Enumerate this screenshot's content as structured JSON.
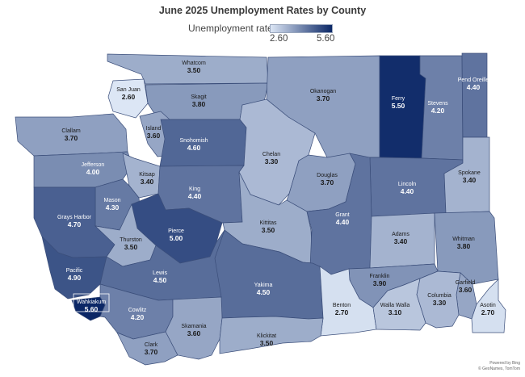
{
  "title": "June 2025 Unemployment Rates by County",
  "legend": {
    "label": "Unemployment rate",
    "min": "2.60",
    "max": "5.60",
    "min_value": 2.6,
    "max_value": 5.6,
    "color_low": "#dce6f5",
    "color_high": "#0b2766"
  },
  "attribution": {
    "line1": "Powered by Bing",
    "line2": "© GeoNames, TomTom"
  },
  "counties": [
    {
      "name": "Whatcom",
      "value": "3.50"
    },
    {
      "name": "San Juan",
      "value": "2.60"
    },
    {
      "name": "Skagit",
      "value": "3.80"
    },
    {
      "name": "Okanogan",
      "value": "3.70"
    },
    {
      "name": "Ferry",
      "value": "5.50"
    },
    {
      "name": "Stevens",
      "value": "4.20"
    },
    {
      "name": "Pend Oreille",
      "value": "4.40"
    },
    {
      "name": "Clallam",
      "value": "3.70"
    },
    {
      "name": "Island",
      "value": "3.60"
    },
    {
      "name": "Snohomish",
      "value": "4.60"
    },
    {
      "name": "Chelan",
      "value": "3.30"
    },
    {
      "name": "Jefferson",
      "value": "4.00"
    },
    {
      "name": "Kitsap",
      "value": "3.40"
    },
    {
      "name": "King",
      "value": "4.40"
    },
    {
      "name": "Douglas",
      "value": "3.70"
    },
    {
      "name": "Lincoln",
      "value": "4.40"
    },
    {
      "name": "Spokane",
      "value": "3.40"
    },
    {
      "name": "Mason",
      "value": "4.30"
    },
    {
      "name": "Grays Harbor",
      "value": "4.70"
    },
    {
      "name": "Pierce",
      "value": "5.00"
    },
    {
      "name": "Kittitas",
      "value": "3.50"
    },
    {
      "name": "Grant",
      "value": "4.40"
    },
    {
      "name": "Adams",
      "value": "3.40"
    },
    {
      "name": "Whitman",
      "value": "3.80"
    },
    {
      "name": "Thurston",
      "value": "3.50"
    },
    {
      "name": "Pacific",
      "value": "4.90"
    },
    {
      "name": "Lewis",
      "value": "4.50"
    },
    {
      "name": "Franklin",
      "value": "3.90"
    },
    {
      "name": "Garfield",
      "value": "3.60"
    },
    {
      "name": "Yakima",
      "value": "4.50"
    },
    {
      "name": "Benton",
      "value": "2.70"
    },
    {
      "name": "Walla Walla",
      "value": "3.10"
    },
    {
      "name": "Columbia",
      "value": "3.30"
    },
    {
      "name": "Asotin",
      "value": "2.70"
    },
    {
      "name": "Wahkiakum",
      "value": "5.60"
    },
    {
      "name": "Cowlitz",
      "value": "4.20"
    },
    {
      "name": "Skamania",
      "value": "3.60"
    },
    {
      "name": "Klickitat",
      "value": "3.50"
    },
    {
      "name": "Clark",
      "value": "3.70"
    }
  ]
}
